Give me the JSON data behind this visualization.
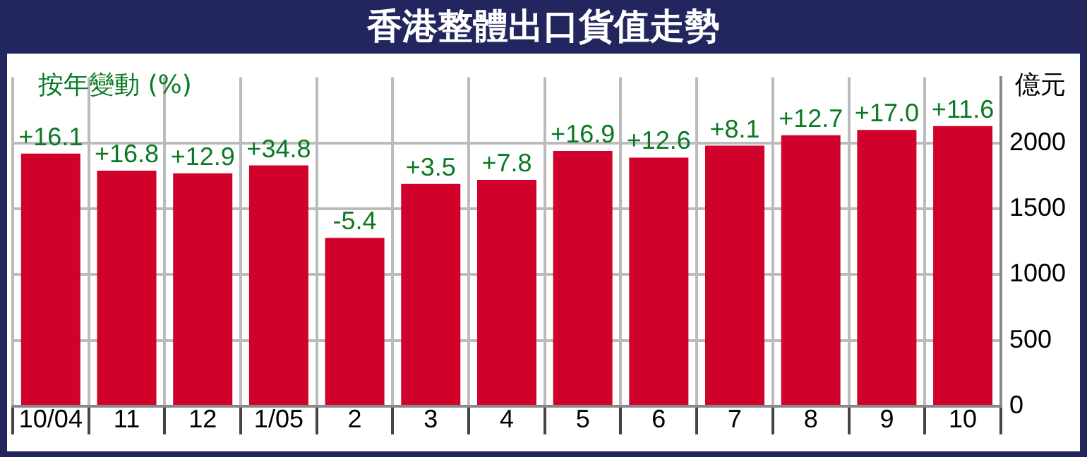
{
  "chart_data": {
    "type": "bar",
    "title": "香港整體出口貨值走勢",
    "ylabel": "億元",
    "annotations": [
      "按年變動 (%)",
      {
        "text": "+16.1",
        "x": "10/04",
        "y": 1920
      },
      {
        "text": "+16.8",
        "x": "11",
        "y": 1790
      },
      {
        "text": "+12.9",
        "x": "12",
        "y": 1770
      },
      {
        "text": "+34.8",
        "x": "1/05",
        "y": 1830
      },
      {
        "text": "-5.4",
        "x": "2",
        "y": 1280
      },
      {
        "text": "+3.5",
        "x": "3",
        "y": 1690
      },
      {
        "text": "+7.8",
        "x": "4",
        "y": 1720
      },
      {
        "text": "+16.9",
        "x": "5",
        "y": 1940
      },
      {
        "text": "+12.6",
        "x": "6",
        "y": 1890
      },
      {
        "text": "+8.1",
        "x": "7",
        "y": 1980
      },
      {
        "text": "+12.7",
        "x": "8",
        "y": 2060
      },
      {
        "text": "+17.0",
        "x": "9",
        "y": 2100
      },
      {
        "text": "+11.6",
        "x": "10",
        "y": 2130
      }
    ],
    "categories": [
      "10/04",
      "11",
      "12",
      "1/05",
      "2",
      "3",
      "4",
      "5",
      "6",
      "7",
      "8",
      "9",
      "10"
    ],
    "values": [
      1920,
      1790,
      1770,
      1830,
      1280,
      1690,
      1720,
      1940,
      1890,
      1980,
      2060,
      2100,
      2130
    ],
    "color": "#d0022c",
    "ylim": [
      0,
      2500
    ],
    "yticks": [
      0,
      500,
      1000,
      1500,
      2000
    ],
    "grid": true
  }
}
